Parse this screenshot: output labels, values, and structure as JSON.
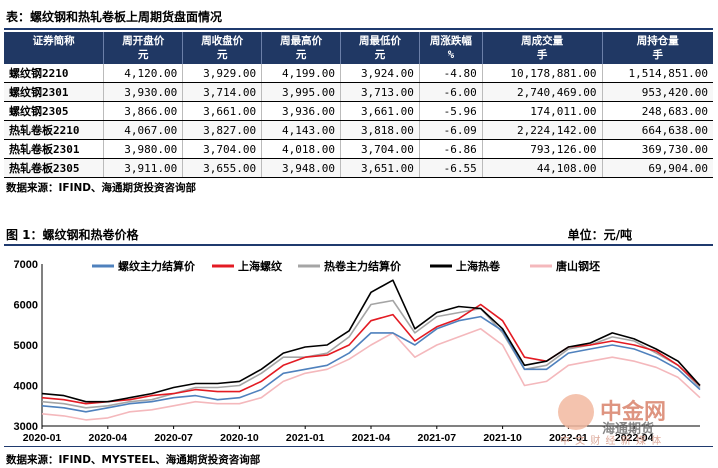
{
  "table": {
    "title": "表：螺纹钢和热轧卷板上周期货盘面情况",
    "headers": [
      [
        "证券简称",
        ""
      ],
      [
        "周开盘价",
        "元"
      ],
      [
        "周收盘价",
        "元"
      ],
      [
        "周最高价",
        "元"
      ],
      [
        "周最低价",
        "元"
      ],
      [
        "周涨跌幅",
        "%"
      ],
      [
        "周成交量",
        "手"
      ],
      [
        "周持仓量",
        "手"
      ]
    ],
    "rows": [
      [
        "螺纹钢2210",
        "4,120.00",
        "3,929.00",
        "4,199.00",
        "3,924.00",
        "-4.80",
        "10,178,881.00",
        "1,514,851.00"
      ],
      [
        "螺纹钢2301",
        "3,930.00",
        "3,714.00",
        "3,995.00",
        "3,713.00",
        "-6.00",
        "2,740,469.00",
        "953,420.00"
      ],
      [
        "螺纹钢2305",
        "3,866.00",
        "3,661.00",
        "3,936.00",
        "3,661.00",
        "-5.96",
        "174,011.00",
        "248,683.00"
      ],
      [
        "热轧卷板2210",
        "4,067.00",
        "3,827.00",
        "4,143.00",
        "3,818.00",
        "-6.09",
        "2,224,142.00",
        "664,638.00"
      ],
      [
        "热轧卷板2301",
        "3,980.00",
        "3,704.00",
        "4,018.00",
        "3,704.00",
        "-6.86",
        "793,126.00",
        "369,730.00"
      ],
      [
        "热轧卷板2305",
        "3,911.00",
        "3,655.00",
        "3,948.00",
        "3,651.00",
        "-6.55",
        "44,108.00",
        "69,904.00"
      ]
    ],
    "source": "数据来源：IFIND、海通期货投资咨询部"
  },
  "figure": {
    "title": "图 1：螺纹钢和热卷价格",
    "unit": "单位：元/吨",
    "source": "数据来源：IFIND、MYSTEEL、海通期货投资咨询部"
  },
  "watermark": {
    "brand": "中金网",
    "sub": "中 文 财 经 新 媒 体",
    "overlay": "海通期货"
  },
  "chart_data": {
    "type": "line",
    "ylim": [
      3000,
      7000
    ],
    "yticks": [
      "3000",
      "4000",
      "5000",
      "6000",
      "7000"
    ],
    "xticks": [
      "2020-01",
      "2020-04",
      "2020-07",
      "2020-10",
      "2021-01",
      "2021-04",
      "2021-07",
      "2021-10",
      "2022-01",
      "2022-04"
    ],
    "x": [
      "2020-01",
      "2020-02",
      "2020-03",
      "2020-04",
      "2020-05",
      "2020-06",
      "2020-07",
      "2020-08",
      "2020-09",
      "2020-10",
      "2020-11",
      "2020-12",
      "2021-01",
      "2021-02",
      "2021-03",
      "2021-04",
      "2021-05",
      "2021-06",
      "2021-07",
      "2021-08",
      "2021-09",
      "2021-10",
      "2021-11",
      "2021-12",
      "2022-01",
      "2022-02",
      "2022-03",
      "2022-04",
      "2022-05",
      "2022-06",
      "2022-07"
    ],
    "series": [
      {
        "name": "螺纹主力结算价",
        "color": "#4f81bd",
        "values": [
          3500,
          3450,
          3350,
          3450,
          3550,
          3600,
          3700,
          3750,
          3650,
          3700,
          3900,
          4300,
          4400,
          4500,
          4800,
          5300,
          5300,
          5000,
          5400,
          5600,
          5700,
          5350,
          4400,
          4400,
          4800,
          4900,
          5000,
          4900,
          4700,
          4400,
          3900
        ]
      },
      {
        "name": "上海螺纹",
        "color": "#e31b23",
        "values": [
          3700,
          3650,
          3550,
          3600,
          3650,
          3750,
          3800,
          3900,
          3850,
          3850,
          4100,
          4500,
          4700,
          4750,
          5000,
          5600,
          5750,
          5100,
          5450,
          5650,
          6000,
          5600,
          4700,
          4600,
          4950,
          5000,
          5100,
          5000,
          4850,
          4500,
          4000
        ]
      },
      {
        "name": "热卷主力结算价",
        "color": "#a5a5a5",
        "values": [
          3600,
          3550,
          3450,
          3500,
          3600,
          3650,
          3800,
          3950,
          3950,
          4000,
          4300,
          4700,
          4700,
          4800,
          5200,
          6000,
          6100,
          5300,
          5700,
          5800,
          5900,
          5300,
          4400,
          4500,
          4900,
          5000,
          5200,
          5100,
          4800,
          4500,
          3950
        ]
      },
      {
        "name": "上海热卷",
        "color": "#000000",
        "values": [
          3800,
          3750,
          3600,
          3600,
          3700,
          3800,
          3950,
          4050,
          4050,
          4100,
          4400,
          4800,
          4950,
          5000,
          5350,
          6300,
          6600,
          5400,
          5800,
          5950,
          5900,
          5400,
          4500,
          4600,
          4950,
          5050,
          5300,
          5150,
          4900,
          4600,
          4000
        ]
      },
      {
        "name": "唐山钢坯",
        "color": "#f4b8bc",
        "values": [
          3300,
          3250,
          3150,
          3200,
          3350,
          3400,
          3500,
          3600,
          3550,
          3550,
          3700,
          4100,
          4300,
          4400,
          4650,
          5000,
          5300,
          4700,
          5000,
          5200,
          5400,
          5000,
          4000,
          4100,
          4500,
          4600,
          4700,
          4600,
          4450,
          4200,
          3700
        ]
      }
    ]
  }
}
